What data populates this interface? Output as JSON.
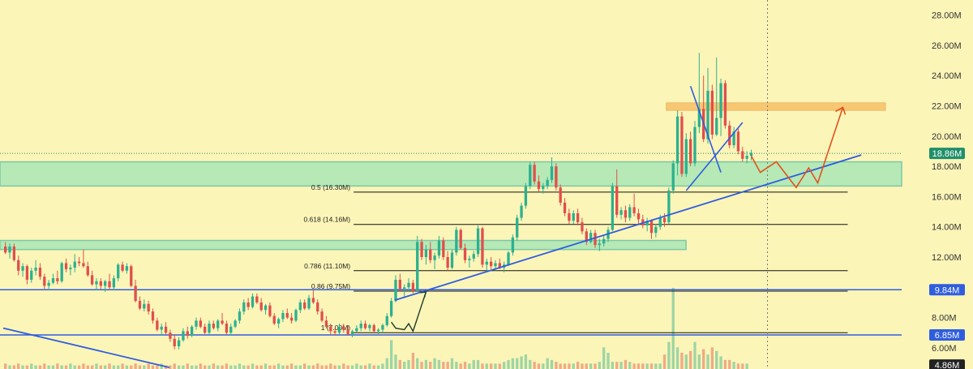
{
  "chart_data": {
    "type": "candlestick",
    "title": "",
    "xlabel": "",
    "ylabel": "",
    "ylim": [
      4.6,
      29
    ],
    "y_ticks": [
      "28.00M",
      "26.00M",
      "24.00M",
      "22.00M",
      "20.00M",
      "18.00M",
      "16.00M",
      "14.00M",
      "12.00M",
      "10.00M",
      "8.00M",
      "6.00M"
    ],
    "y_tick_values": [
      28,
      26,
      24,
      22,
      20,
      18,
      16,
      14,
      12,
      10,
      8,
      6
    ],
    "price_tags": [
      {
        "value": 18.86,
        "label": "18.86M",
        "color": "#1f8f6a"
      },
      {
        "value": 9.84,
        "label": "9.84M",
        "color": "#2e5de0"
      },
      {
        "value": 6.85,
        "label": "6.85M",
        "color": "#2e5de0"
      },
      {
        "value": 4.86,
        "label": "4.86M",
        "color": "#222222"
      }
    ],
    "fib_levels": [
      {
        "ratio": "0.5",
        "value": 16.3,
        "label": "0.5 (16.30M)"
      },
      {
        "ratio": "0.618",
        "value": 14.16,
        "label": "0.618 (14.16M)"
      },
      {
        "ratio": "0.786",
        "value": 11.1,
        "label": "0.786 (11.10M)"
      },
      {
        "ratio": "0.86",
        "value": 9.75,
        "label": "0.86 (9.75M)"
      },
      {
        "ratio": "1",
        "value": 7.0,
        "label": "1 (7.00M)"
      }
    ],
    "support_zones": [
      {
        "low": 16.7,
        "high": 18.3
      },
      {
        "low": 12.5,
        "high": 13.1
      }
    ],
    "target_zone": {
      "low": 21.7,
      "high": 22.2
    },
    "horizontal_lines": [
      9.84,
      6.85
    ],
    "trend_up": [
      [
        0.436,
        9.15
      ],
      [
        0.955,
        18.75
      ]
    ],
    "trend_down": [
      [
        0.0,
        7.3
      ],
      [
        0.185,
        4.7
      ]
    ],
    "colors": {
      "up": "#2db08f",
      "down": "#e04f4c",
      "zone": "#7ee0b4",
      "target": "#f6a23c",
      "projection": "#e0531d",
      "trend": "#2e5de0"
    },
    "candles": [
      [
        12.7,
        13.0,
        12.2,
        12.3
      ],
      [
        12.3,
        12.9,
        11.9,
        12.7
      ],
      [
        12.7,
        12.9,
        11.7,
        11.8
      ],
      [
        11.8,
        12.1,
        10.8,
        11.1
      ],
      [
        11.1,
        11.6,
        10.7,
        11.4
      ],
      [
        11.4,
        11.5,
        10.2,
        10.5
      ],
      [
        10.5,
        11.3,
        10.3,
        11.1
      ],
      [
        11.1,
        11.8,
        10.8,
        11.3
      ],
      [
        11.3,
        11.6,
        10.5,
        10.7
      ],
      [
        10.7,
        10.9,
        9.9,
        10.1
      ],
      [
        10.1,
        10.5,
        9.8,
        10.3
      ],
      [
        10.3,
        10.9,
        10.2,
        10.6
      ],
      [
        10.6,
        11.1,
        10.2,
        10.4
      ],
      [
        10.4,
        11.7,
        10.3,
        11.6
      ],
      [
        11.6,
        11.9,
        11.0,
        11.2
      ],
      [
        11.2,
        11.5,
        10.8,
        11.3
      ],
      [
        11.3,
        12.2,
        11.0,
        11.7
      ],
      [
        11.7,
        12.0,
        11.4,
        11.6
      ],
      [
        11.6,
        12.5,
        11.3,
        11.4
      ],
      [
        11.4,
        11.7,
        10.7,
        10.8
      ],
      [
        10.8,
        11.1,
        10.1,
        10.2
      ],
      [
        10.2,
        10.6,
        9.8,
        10.4
      ],
      [
        10.4,
        10.6,
        9.9,
        10.1
      ],
      [
        10.1,
        10.5,
        9.7,
        10.4
      ],
      [
        10.4,
        10.9,
        9.9,
        10.0
      ],
      [
        10.0,
        10.8,
        9.8,
        10.6
      ],
      [
        10.6,
        11.6,
        10.4,
        11.5
      ],
      [
        11.5,
        11.7,
        11.0,
        11.1
      ],
      [
        11.1,
        11.6,
        10.9,
        11.4
      ],
      [
        11.4,
        11.5,
        10.0,
        10.1
      ],
      [
        10.1,
        10.5,
        9.0,
        9.1
      ],
      [
        9.1,
        9.4,
        8.5,
        8.6
      ],
      [
        8.6,
        9.2,
        8.4,
        8.9
      ],
      [
        8.9,
        9.1,
        8.2,
        8.4
      ],
      [
        8.4,
        8.6,
        7.6,
        7.8
      ],
      [
        7.8,
        8.0,
        7.1,
        7.2
      ],
      [
        7.2,
        7.6,
        6.8,
        7.4
      ],
      [
        7.4,
        7.7,
        6.9,
        7.0
      ],
      [
        7.0,
        7.2,
        6.4,
        6.6
      ],
      [
        6.6,
        6.9,
        5.9,
        6.1
      ],
      [
        6.1,
        6.7,
        5.9,
        6.5
      ],
      [
        6.5,
        7.3,
        6.4,
        7.1
      ],
      [
        7.1,
        7.4,
        6.6,
        6.8
      ],
      [
        6.8,
        7.5,
        6.7,
        7.4
      ],
      [
        7.4,
        8.0,
        7.2,
        7.8
      ],
      [
        7.8,
        8.0,
        7.3,
        7.4
      ],
      [
        7.4,
        7.6,
        6.9,
        7.0
      ],
      [
        7.0,
        7.8,
        6.9,
        7.6
      ],
      [
        7.6,
        7.8,
        7.2,
        7.3
      ],
      [
        7.3,
        7.9,
        7.1,
        7.8
      ],
      [
        7.8,
        8.3,
        7.5,
        7.6
      ],
      [
        7.6,
        7.8,
        6.9,
        7.0
      ],
      [
        7.0,
        7.6,
        6.8,
        7.4
      ],
      [
        7.4,
        7.9,
        7.3,
        7.8
      ],
      [
        7.8,
        8.6,
        7.6,
        8.4
      ],
      [
        8.4,
        9.2,
        8.2,
        9.0
      ],
      [
        9.0,
        9.3,
        8.5,
        8.7
      ],
      [
        8.7,
        9.6,
        8.6,
        9.4
      ],
      [
        9.4,
        9.6,
        8.9,
        9.0
      ],
      [
        9.0,
        9.3,
        8.4,
        8.5
      ],
      [
        8.5,
        8.9,
        8.2,
        8.8
      ],
      [
        8.8,
        9.0,
        8.0,
        8.1
      ],
      [
        8.1,
        8.3,
        7.5,
        7.6
      ],
      [
        7.6,
        8.0,
        7.3,
        7.9
      ],
      [
        7.9,
        8.5,
        7.7,
        8.3
      ],
      [
        8.3,
        8.6,
        7.9,
        8.0
      ],
      [
        8.0,
        8.3,
        7.6,
        7.8
      ],
      [
        7.8,
        8.6,
        7.7,
        8.5
      ],
      [
        8.5,
        9.2,
        8.3,
        9.0
      ],
      [
        9.0,
        9.2,
        8.5,
        8.6
      ],
      [
        8.6,
        9.5,
        8.5,
        9.3
      ],
      [
        9.3,
        9.8,
        8.9,
        9.0
      ],
      [
        9.0,
        9.2,
        8.2,
        8.4
      ],
      [
        8.4,
        8.6,
        7.7,
        7.8
      ],
      [
        7.8,
        8.1,
        7.3,
        7.4
      ],
      [
        7.4,
        7.6,
        6.9,
        7.1
      ],
      [
        7.1,
        7.3,
        6.8,
        7.0
      ],
      [
        7.0,
        7.6,
        6.9,
        7.4
      ],
      [
        7.4,
        7.6,
        7.0,
        7.2
      ],
      [
        7.2,
        7.5,
        6.8,
        6.9
      ],
      [
        6.9,
        7.2,
        6.7,
        7.1
      ],
      [
        7.1,
        7.5,
        7.0,
        7.3
      ],
      [
        7.3,
        7.8,
        7.1,
        7.6
      ],
      [
        7.6,
        7.8,
        7.2,
        7.3
      ],
      [
        7.3,
        7.6,
        7.1,
        7.5
      ],
      [
        7.5,
        7.6,
        7.0,
        7.1
      ],
      [
        7.1,
        7.3,
        6.9,
        7.2
      ],
      [
        7.2,
        7.6,
        7.0,
        7.5
      ],
      [
        7.5,
        8.3,
        7.4,
        8.1
      ],
      [
        8.1,
        9.3,
        8.0,
        9.1
      ],
      [
        9.1,
        10.8,
        9.0,
        10.5
      ],
      [
        10.5,
        10.9,
        9.7,
        9.9
      ],
      [
        9.9,
        10.2,
        9.3,
        10.0
      ],
      [
        10.0,
        10.6,
        9.8,
        10.3
      ],
      [
        10.3,
        10.5,
        9.6,
        9.8
      ],
      [
        9.8,
        13.4,
        9.7,
        13.0
      ],
      [
        13.0,
        13.2,
        11.8,
        12.0
      ],
      [
        12.0,
        12.8,
        11.5,
        12.5
      ],
      [
        12.5,
        13.0,
        11.6,
        11.8
      ],
      [
        11.8,
        12.3,
        11.2,
        12.1
      ],
      [
        12.1,
        13.4,
        11.9,
        13.1
      ],
      [
        13.1,
        13.3,
        11.8,
        12.0
      ],
      [
        12.0,
        12.4,
        11.1,
        11.3
      ],
      [
        11.3,
        12.5,
        11.2,
        12.3
      ],
      [
        12.3,
        14.0,
        12.1,
        13.8
      ],
      [
        13.8,
        13.9,
        12.5,
        12.6
      ],
      [
        12.6,
        12.9,
        11.6,
        11.8
      ],
      [
        11.8,
        12.1,
        11.3,
        11.9
      ],
      [
        11.9,
        12.4,
        11.7,
        12.2
      ],
      [
        12.2,
        14.1,
        12.0,
        13.9
      ],
      [
        13.9,
        14.0,
        11.3,
        11.5
      ],
      [
        11.5,
        11.9,
        11.0,
        11.7
      ],
      [
        11.7,
        12.0,
        11.2,
        11.4
      ],
      [
        11.4,
        11.8,
        11.1,
        11.6
      ],
      [
        11.6,
        11.9,
        11.2,
        11.3
      ],
      [
        11.3,
        11.7,
        11.0,
        11.5
      ],
      [
        11.5,
        12.4,
        11.4,
        12.3
      ],
      [
        12.3,
        13.5,
        12.1,
        13.3
      ],
      [
        13.3,
        14.8,
        13.1,
        14.6
      ],
      [
        14.6,
        15.6,
        14.4,
        15.4
      ],
      [
        15.4,
        16.9,
        15.2,
        16.7
      ],
      [
        16.7,
        18.3,
        16.5,
        18.1
      ],
      [
        18.1,
        18.3,
        16.8,
        17.0
      ],
      [
        17.0,
        17.4,
        16.3,
        16.5
      ],
      [
        16.5,
        16.9,
        16.2,
        16.7
      ],
      [
        16.7,
        17.3,
        16.5,
        17.1
      ],
      [
        17.1,
        18.6,
        16.9,
        18.0
      ],
      [
        18.0,
        18.2,
        16.4,
        16.6
      ],
      [
        16.6,
        16.8,
        15.4,
        15.6
      ],
      [
        15.6,
        15.9,
        14.7,
        14.9
      ],
      [
        14.9,
        15.2,
        14.2,
        14.4
      ],
      [
        14.4,
        15.1,
        14.2,
        14.9
      ],
      [
        14.9,
        15.2,
        14.1,
        14.3
      ],
      [
        14.3,
        14.6,
        13.5,
        13.7
      ],
      [
        13.7,
        13.9,
        12.8,
        13.0
      ],
      [
        13.0,
        13.8,
        12.9,
        13.6
      ],
      [
        13.6,
        13.8,
        12.6,
        12.8
      ],
      [
        12.8,
        13.2,
        12.4,
        12.9
      ],
      [
        12.9,
        13.4,
        12.7,
        13.2
      ],
      [
        13.2,
        14.0,
        13.0,
        13.8
      ],
      [
        13.8,
        16.9,
        13.7,
        16.7
      ],
      [
        16.7,
        17.8,
        14.6,
        14.8
      ],
      [
        14.8,
        15.3,
        14.5,
        15.1
      ],
      [
        15.1,
        15.4,
        14.3,
        14.6
      ],
      [
        14.6,
        15.5,
        14.4,
        15.3
      ],
      [
        15.3,
        16.2,
        14.7,
        14.9
      ],
      [
        14.9,
        15.2,
        14.2,
        14.5
      ],
      [
        14.5,
        14.8,
        13.9,
        14.1
      ],
      [
        14.1,
        14.6,
        13.7,
        14.4
      ],
      [
        14.4,
        14.5,
        13.2,
        13.6
      ],
      [
        13.6,
        14.2,
        13.3,
        14.0
      ],
      [
        14.0,
        14.8,
        13.8,
        14.6
      ],
      [
        14.6,
        14.9,
        14.0,
        14.3
      ],
      [
        14.3,
        16.6,
        14.2,
        16.4
      ],
      [
        16.4,
        18.4,
        16.2,
        18.2
      ],
      [
        18.2,
        21.7,
        17.4,
        21.3
      ],
      [
        21.3,
        21.6,
        17.3,
        17.5
      ],
      [
        17.5,
        20.2,
        17.3,
        19.8
      ],
      [
        19.8,
        20.3,
        18.0,
        18.2
      ],
      [
        18.2,
        21.0,
        18.0,
        20.6
      ],
      [
        20.6,
        25.5,
        20.2,
        21.8
      ],
      [
        21.8,
        24.0,
        19.6,
        19.8
      ],
      [
        19.8,
        24.5,
        19.5,
        23.0
      ],
      [
        23.0,
        23.4,
        19.8,
        20.1
      ],
      [
        20.1,
        25.2,
        20.0,
        21.2
      ],
      [
        21.2,
        23.8,
        20.0,
        23.5
      ],
      [
        23.5,
        23.7,
        20.5,
        20.7
      ],
      [
        20.7,
        21.0,
        19.2,
        19.4
      ],
      [
        19.4,
        20.6,
        19.2,
        20.3
      ],
      [
        20.3,
        20.5,
        18.8,
        19.0
      ],
      [
        19.0,
        19.3,
        18.3,
        18.5
      ],
      [
        18.5,
        19.0,
        18.2,
        18.7
      ],
      [
        18.7,
        19.1,
        18.4,
        18.9
      ]
    ],
    "volume": [
      0.3,
      0.2,
      0.2,
      0.3,
      0.2,
      0.2,
      0.3,
      0.2,
      0.2,
      0.3,
      0.2,
      0.2,
      0.3,
      0.2,
      0.2,
      0.3,
      0.2,
      0.2,
      0.3,
      0.2,
      0.2,
      0.3,
      0.2,
      0.2,
      0.3,
      0.2,
      0.2,
      0.3,
      0.2,
      0.2,
      0.3,
      0.2,
      0.2,
      0.3,
      0.2,
      0.2,
      0.3,
      0.2,
      0.2,
      0.3,
      0.2,
      0.2,
      0.3,
      0.2,
      0.2,
      0.3,
      0.2,
      0.2,
      0.3,
      0.2,
      0.2,
      0.3,
      0.2,
      0.2,
      0.3,
      0.2,
      0.2,
      0.3,
      0.2,
      0.2,
      0.3,
      0.2,
      0.2,
      0.3,
      0.2,
      0.2,
      0.3,
      0.2,
      0.2,
      0.3,
      0.2,
      0.2,
      0.3,
      0.2,
      0.2,
      0.3,
      0.2,
      0.2,
      0.3,
      0.2,
      0.2,
      0.3,
      0.2,
      0.2,
      0.3,
      0.2,
      0.2,
      0.3,
      0.6,
      1.6,
      0.8,
      0.5,
      0.4,
      0.5,
      0.9,
      0.6,
      0.4,
      0.5,
      0.4,
      0.6,
      0.5,
      0.4,
      0.4,
      0.6,
      0.4,
      0.3,
      0.4,
      0.3,
      0.5,
      0.5,
      0.3,
      0.3,
      0.3,
      0.3,
      0.3,
      0.4,
      0.5,
      0.6,
      0.6,
      0.7,
      0.8,
      0.5,
      0.4,
      0.3,
      0.3,
      0.6,
      0.5,
      0.4,
      0.3,
      0.3,
      0.3,
      0.3,
      0.4,
      0.3,
      0.3,
      0.3,
      0.3,
      0.4,
      1.2,
      0.9,
      0.4,
      0.4,
      0.4,
      0.5,
      0.4,
      0.3,
      0.3,
      0.3,
      0.3,
      0.3,
      0.3,
      0.3,
      0.8,
      1.5,
      4.5,
      1.2,
      0.9,
      0.8,
      1.0,
      1.5,
      0.8,
      1.1,
      0.8,
      1.2,
      1.0,
      0.7,
      0.5,
      0.5,
      0.4,
      0.3,
      0.3,
      0.3
    ]
  }
}
